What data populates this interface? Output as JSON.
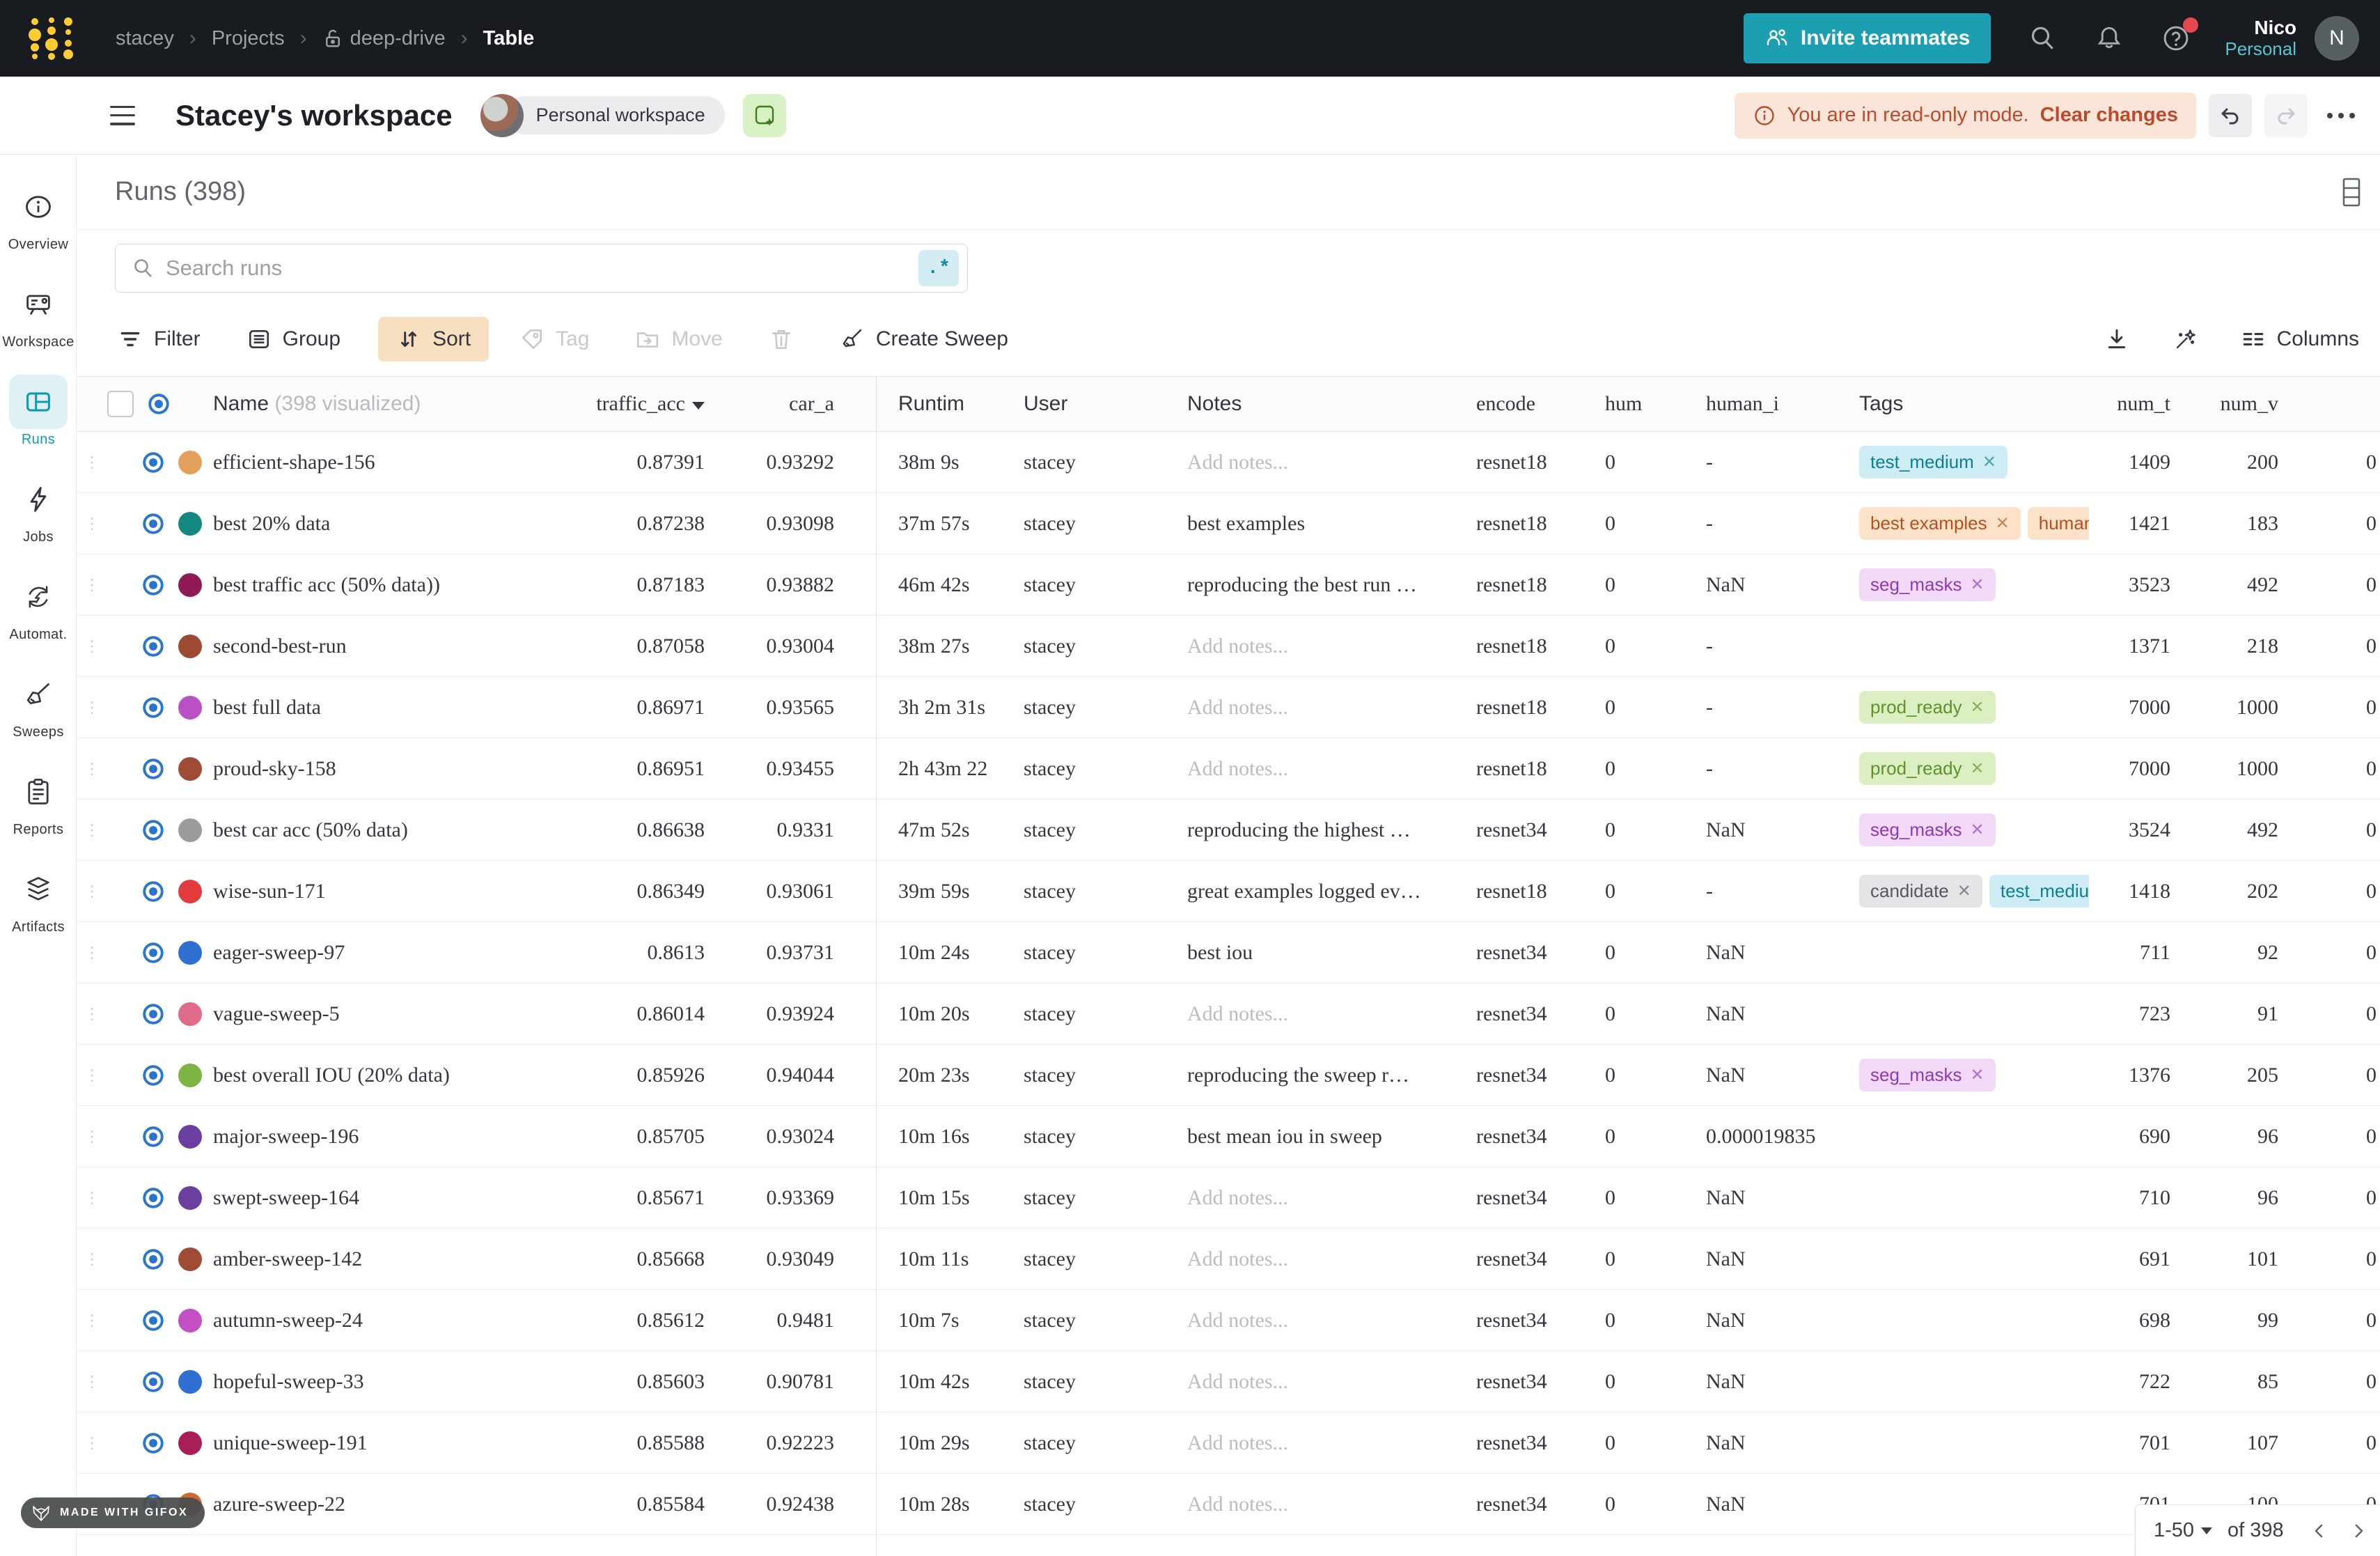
{
  "topnav": {
    "breadcrumb": [
      "stacey",
      "Projects",
      "deep-drive",
      "Table"
    ],
    "invite_label": "Invite teammates",
    "user_name": "Nico",
    "user_scope": "Personal",
    "avatar_initial": "N"
  },
  "header": {
    "workspace_title": "Stacey's workspace",
    "workspace_badge": "Personal workspace",
    "readonly_text": "You are in read-only mode.",
    "readonly_action": "Clear changes"
  },
  "sidebar": {
    "items": [
      {
        "label": "Overview",
        "icon": "overview",
        "active": false
      },
      {
        "label": "Workspace",
        "icon": "workspace",
        "active": false
      },
      {
        "label": "Runs",
        "icon": "runs",
        "active": true
      },
      {
        "label": "Jobs",
        "icon": "jobs",
        "active": false
      },
      {
        "label": "Automat.",
        "icon": "automations",
        "active": false
      },
      {
        "label": "Sweeps",
        "icon": "sweeps",
        "active": false
      },
      {
        "label": "Reports",
        "icon": "reports",
        "active": false
      },
      {
        "label": "Artifacts",
        "icon": "artifacts",
        "active": false
      }
    ]
  },
  "runs_panel": {
    "title": "Runs (398)",
    "search_placeholder": "Search runs",
    "regex_label": ".*",
    "toolbar": [
      {
        "label": "Filter",
        "icon": "filter",
        "state": "normal"
      },
      {
        "label": "Group",
        "icon": "group",
        "state": "normal"
      },
      {
        "label": "Sort",
        "icon": "sort",
        "state": "active"
      },
      {
        "label": "Tag",
        "icon": "tag",
        "state": "disabled"
      },
      {
        "label": "Move",
        "icon": "move",
        "state": "disabled"
      },
      {
        "label": "",
        "icon": "trash",
        "state": "disabled"
      },
      {
        "label": "Create Sweep",
        "icon": "broom",
        "state": "normal"
      }
    ],
    "columns_label": "Columns"
  },
  "table": {
    "headers": {
      "name": "Name",
      "name_extra": "(398 visualized)",
      "traffic": "traffic_acc",
      "car": "car_a",
      "runtime": "Runtim",
      "user": "User",
      "notes": "Notes",
      "encoder": "encode",
      "hum": "hum",
      "human": "human_i",
      "tags": "Tags",
      "numt": "num_t",
      "numv": "num_v"
    },
    "notes_placeholder": "Add notes...",
    "tag_styles": {
      "cyan": {
        "bg": "#cdecf3",
        "fg": "#0d7f93"
      },
      "orange": {
        "bg": "#fbe2c8",
        "fg": "#b5511e"
      },
      "purple": {
        "bg": "#f1d9f7",
        "fg": "#9039b4"
      },
      "green": {
        "bg": "#dcefc3",
        "fg": "#60912b"
      },
      "gray": {
        "bg": "#e5e5e7",
        "fg": "#55585d"
      }
    },
    "rows": [
      {
        "name": "efficient-shape-156",
        "color": "#e3a05c",
        "traffic": "0.87391",
        "car": "0.93292",
        "runtime": "38m 9s",
        "user": "stacey",
        "notes": null,
        "encoder": "resnet18",
        "hum": "0",
        "human": "-",
        "tags": [
          {
            "label": "test_medium",
            "style": "cyan"
          }
        ],
        "numt": "1409",
        "numv": "200",
        "partial": "0"
      },
      {
        "name": "best 20% data",
        "color": "#12887e",
        "traffic": "0.87238",
        "car": "0.93098",
        "runtime": "37m 57s",
        "user": "stacey",
        "notes": "best examples",
        "encoder": "resnet18",
        "hum": "0",
        "human": "-",
        "tags": [
          {
            "label": "best examples",
            "style": "orange"
          },
          {
            "label": "humans",
            "style": "orange"
          }
        ],
        "numt": "1421",
        "numv": "183",
        "partial": "0"
      },
      {
        "name": "best traffic acc (50% data))",
        "color": "#8f1a56",
        "traffic": "0.87183",
        "car": "0.93882",
        "runtime": "46m 42s",
        "user": "stacey",
        "notes": "reproducing the best run …",
        "encoder": "resnet18",
        "hum": "0",
        "human": "NaN",
        "tags": [
          {
            "label": "seg_masks",
            "style": "purple"
          }
        ],
        "numt": "3523",
        "numv": "492",
        "partial": "0"
      },
      {
        "name": "second-best-run",
        "color": "#9c4a32",
        "traffic": "0.87058",
        "car": "0.93004",
        "runtime": "38m 27s",
        "user": "stacey",
        "notes": null,
        "encoder": "resnet18",
        "hum": "0",
        "human": "-",
        "tags": [],
        "numt": "1371",
        "numv": "218",
        "partial": "0"
      },
      {
        "name": "best full data",
        "color": "#bb4fc6",
        "traffic": "0.86971",
        "car": "0.93565",
        "runtime": "3h 2m 31s",
        "user": "stacey",
        "notes": null,
        "encoder": "resnet18",
        "hum": "0",
        "human": "-",
        "tags": [
          {
            "label": "prod_ready",
            "style": "green"
          }
        ],
        "numt": "7000",
        "numv": "1000",
        "partial": "0"
      },
      {
        "name": "proud-sky-158",
        "color": "#a04b36",
        "traffic": "0.86951",
        "car": "0.93455",
        "runtime": "2h 43m 22",
        "user": "stacey",
        "notes": null,
        "encoder": "resnet18",
        "hum": "0",
        "human": "-",
        "tags": [
          {
            "label": "prod_ready",
            "style": "green"
          }
        ],
        "numt": "7000",
        "numv": "1000",
        "partial": "0"
      },
      {
        "name": "best car acc (50% data)",
        "color": "#9b9b9b",
        "traffic": "0.86638",
        "car": "0.9331",
        "runtime": "47m 52s",
        "user": "stacey",
        "notes": "reproducing the highest …",
        "encoder": "resnet34",
        "hum": "0",
        "human": "NaN",
        "tags": [
          {
            "label": "seg_masks",
            "style": "purple"
          }
        ],
        "numt": "3524",
        "numv": "492",
        "partial": "0"
      },
      {
        "name": "wise-sun-171",
        "color": "#e13b3b",
        "traffic": "0.86349",
        "car": "0.93061",
        "runtime": "39m 59s",
        "user": "stacey",
        "notes": "great examples logged ev…",
        "encoder": "resnet18",
        "hum": "0",
        "human": "-",
        "tags": [
          {
            "label": "candidate",
            "style": "gray"
          },
          {
            "label": "test_medium",
            "style": "cyan"
          }
        ],
        "numt": "1418",
        "numv": "202",
        "partial": "0"
      },
      {
        "name": "eager-sweep-97",
        "color": "#2f6fd1",
        "traffic": "0.8613",
        "car": "0.93731",
        "runtime": "10m 24s",
        "user": "stacey",
        "notes": "best iou",
        "encoder": "resnet34",
        "hum": "0",
        "human": "NaN",
        "tags": [],
        "numt": "711",
        "numv": "92",
        "partial": "0"
      },
      {
        "name": "vague-sweep-5",
        "color": "#e06a8a",
        "traffic": "0.86014",
        "car": "0.93924",
        "runtime": "10m 20s",
        "user": "stacey",
        "notes": null,
        "encoder": "resnet34",
        "hum": "0",
        "human": "NaN",
        "tags": [],
        "numt": "723",
        "numv": "91",
        "partial": "0"
      },
      {
        "name": "best overall IOU (20% data)",
        "color": "#7cb342",
        "traffic": "0.85926",
        "car": "0.94044",
        "runtime": "20m 23s",
        "user": "stacey",
        "notes": "reproducing the sweep r…",
        "encoder": "resnet34",
        "hum": "0",
        "human": "NaN",
        "tags": [
          {
            "label": "seg_masks",
            "style": "purple"
          }
        ],
        "numt": "1376",
        "numv": "205",
        "partial": "0"
      },
      {
        "name": "major-sweep-196",
        "color": "#6a3fa0",
        "traffic": "0.85705",
        "car": "0.93024",
        "runtime": "10m 16s",
        "user": "stacey",
        "notes": "best mean iou in sweep",
        "encoder": "resnet34",
        "hum": "0",
        "human": "0.000019835",
        "tags": [],
        "numt": "690",
        "numv": "96",
        "partial": "0"
      },
      {
        "name": "swept-sweep-164",
        "color": "#6a3fa0",
        "traffic": "0.85671",
        "car": "0.93369",
        "runtime": "10m 15s",
        "user": "stacey",
        "notes": null,
        "encoder": "resnet34",
        "hum": "0",
        "human": "NaN",
        "tags": [],
        "numt": "710",
        "numv": "96",
        "partial": "0"
      },
      {
        "name": "amber-sweep-142",
        "color": "#a04b36",
        "traffic": "0.85668",
        "car": "0.93049",
        "runtime": "10m 11s",
        "user": "stacey",
        "notes": null,
        "encoder": "resnet34",
        "hum": "0",
        "human": "NaN",
        "tags": [],
        "numt": "691",
        "numv": "101",
        "partial": "0"
      },
      {
        "name": "autumn-sweep-24",
        "color": "#c44ec4",
        "traffic": "0.85612",
        "car": "0.9481",
        "runtime": "10m 7s",
        "user": "stacey",
        "notes": null,
        "encoder": "resnet34",
        "hum": "0",
        "human": "NaN",
        "tags": [],
        "numt": "698",
        "numv": "99",
        "partial": "0"
      },
      {
        "name": "hopeful-sweep-33",
        "color": "#2f6fd1",
        "traffic": "0.85603",
        "car": "0.90781",
        "runtime": "10m 42s",
        "user": "stacey",
        "notes": null,
        "encoder": "resnet34",
        "hum": "0",
        "human": "NaN",
        "tags": [],
        "numt": "722",
        "numv": "85",
        "partial": "0"
      },
      {
        "name": "unique-sweep-191",
        "color": "#a81e56",
        "traffic": "0.85588",
        "car": "0.92223",
        "runtime": "10m 29s",
        "user": "stacey",
        "notes": null,
        "encoder": "resnet34",
        "hum": "0",
        "human": "NaN",
        "tags": [],
        "numt": "701",
        "numv": "107",
        "partial": "0"
      },
      {
        "name": "azure-sweep-22",
        "color": "#cf6a2e",
        "traffic": "0.85584",
        "car": "0.92438",
        "runtime": "10m 28s",
        "user": "stacey",
        "notes": null,
        "encoder": "resnet34",
        "hum": "0",
        "human": "NaN",
        "tags": [],
        "numt": "701",
        "numv": "100",
        "partial": "0"
      }
    ]
  },
  "pagination": {
    "range": "1-50",
    "of": "of 398"
  },
  "badge": {
    "label": "MADE WITH GIFOX"
  }
}
